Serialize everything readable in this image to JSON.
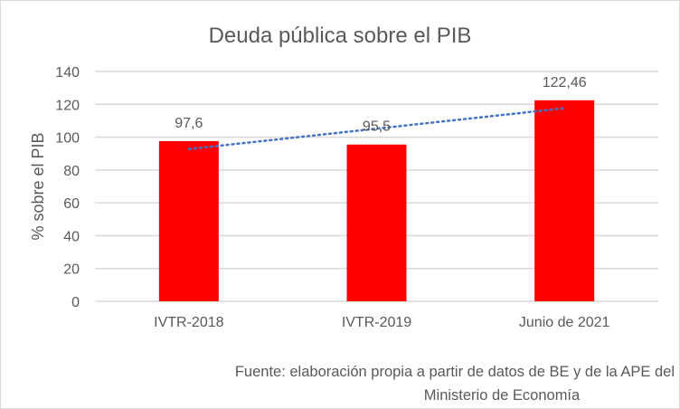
{
  "chart_data": {
    "type": "bar",
    "title": "Deuda pública sobre el PIB",
    "xlabel": "",
    "ylabel": "% sobre el PIB",
    "categories": [
      "IVTR-2018",
      "IVTR-2019",
      "Junio de 2021"
    ],
    "values": [
      97.6,
      95.5,
      122.46
    ],
    "data_labels": [
      "97,6",
      "95,5",
      "122,46"
    ],
    "ylim": [
      0,
      140
    ],
    "yticks": [
      0,
      20,
      40,
      60,
      80,
      100,
      120,
      140
    ],
    "grid": true,
    "trendline": {
      "type": "linear",
      "style": "dotted",
      "color": "#4472C4"
    },
    "bar_color": "#FF0000",
    "source_line1": "Fuente: elaboración propia a partir de datos de BE y de la APE del",
    "source_line2": "Ministerio de Economía"
  }
}
